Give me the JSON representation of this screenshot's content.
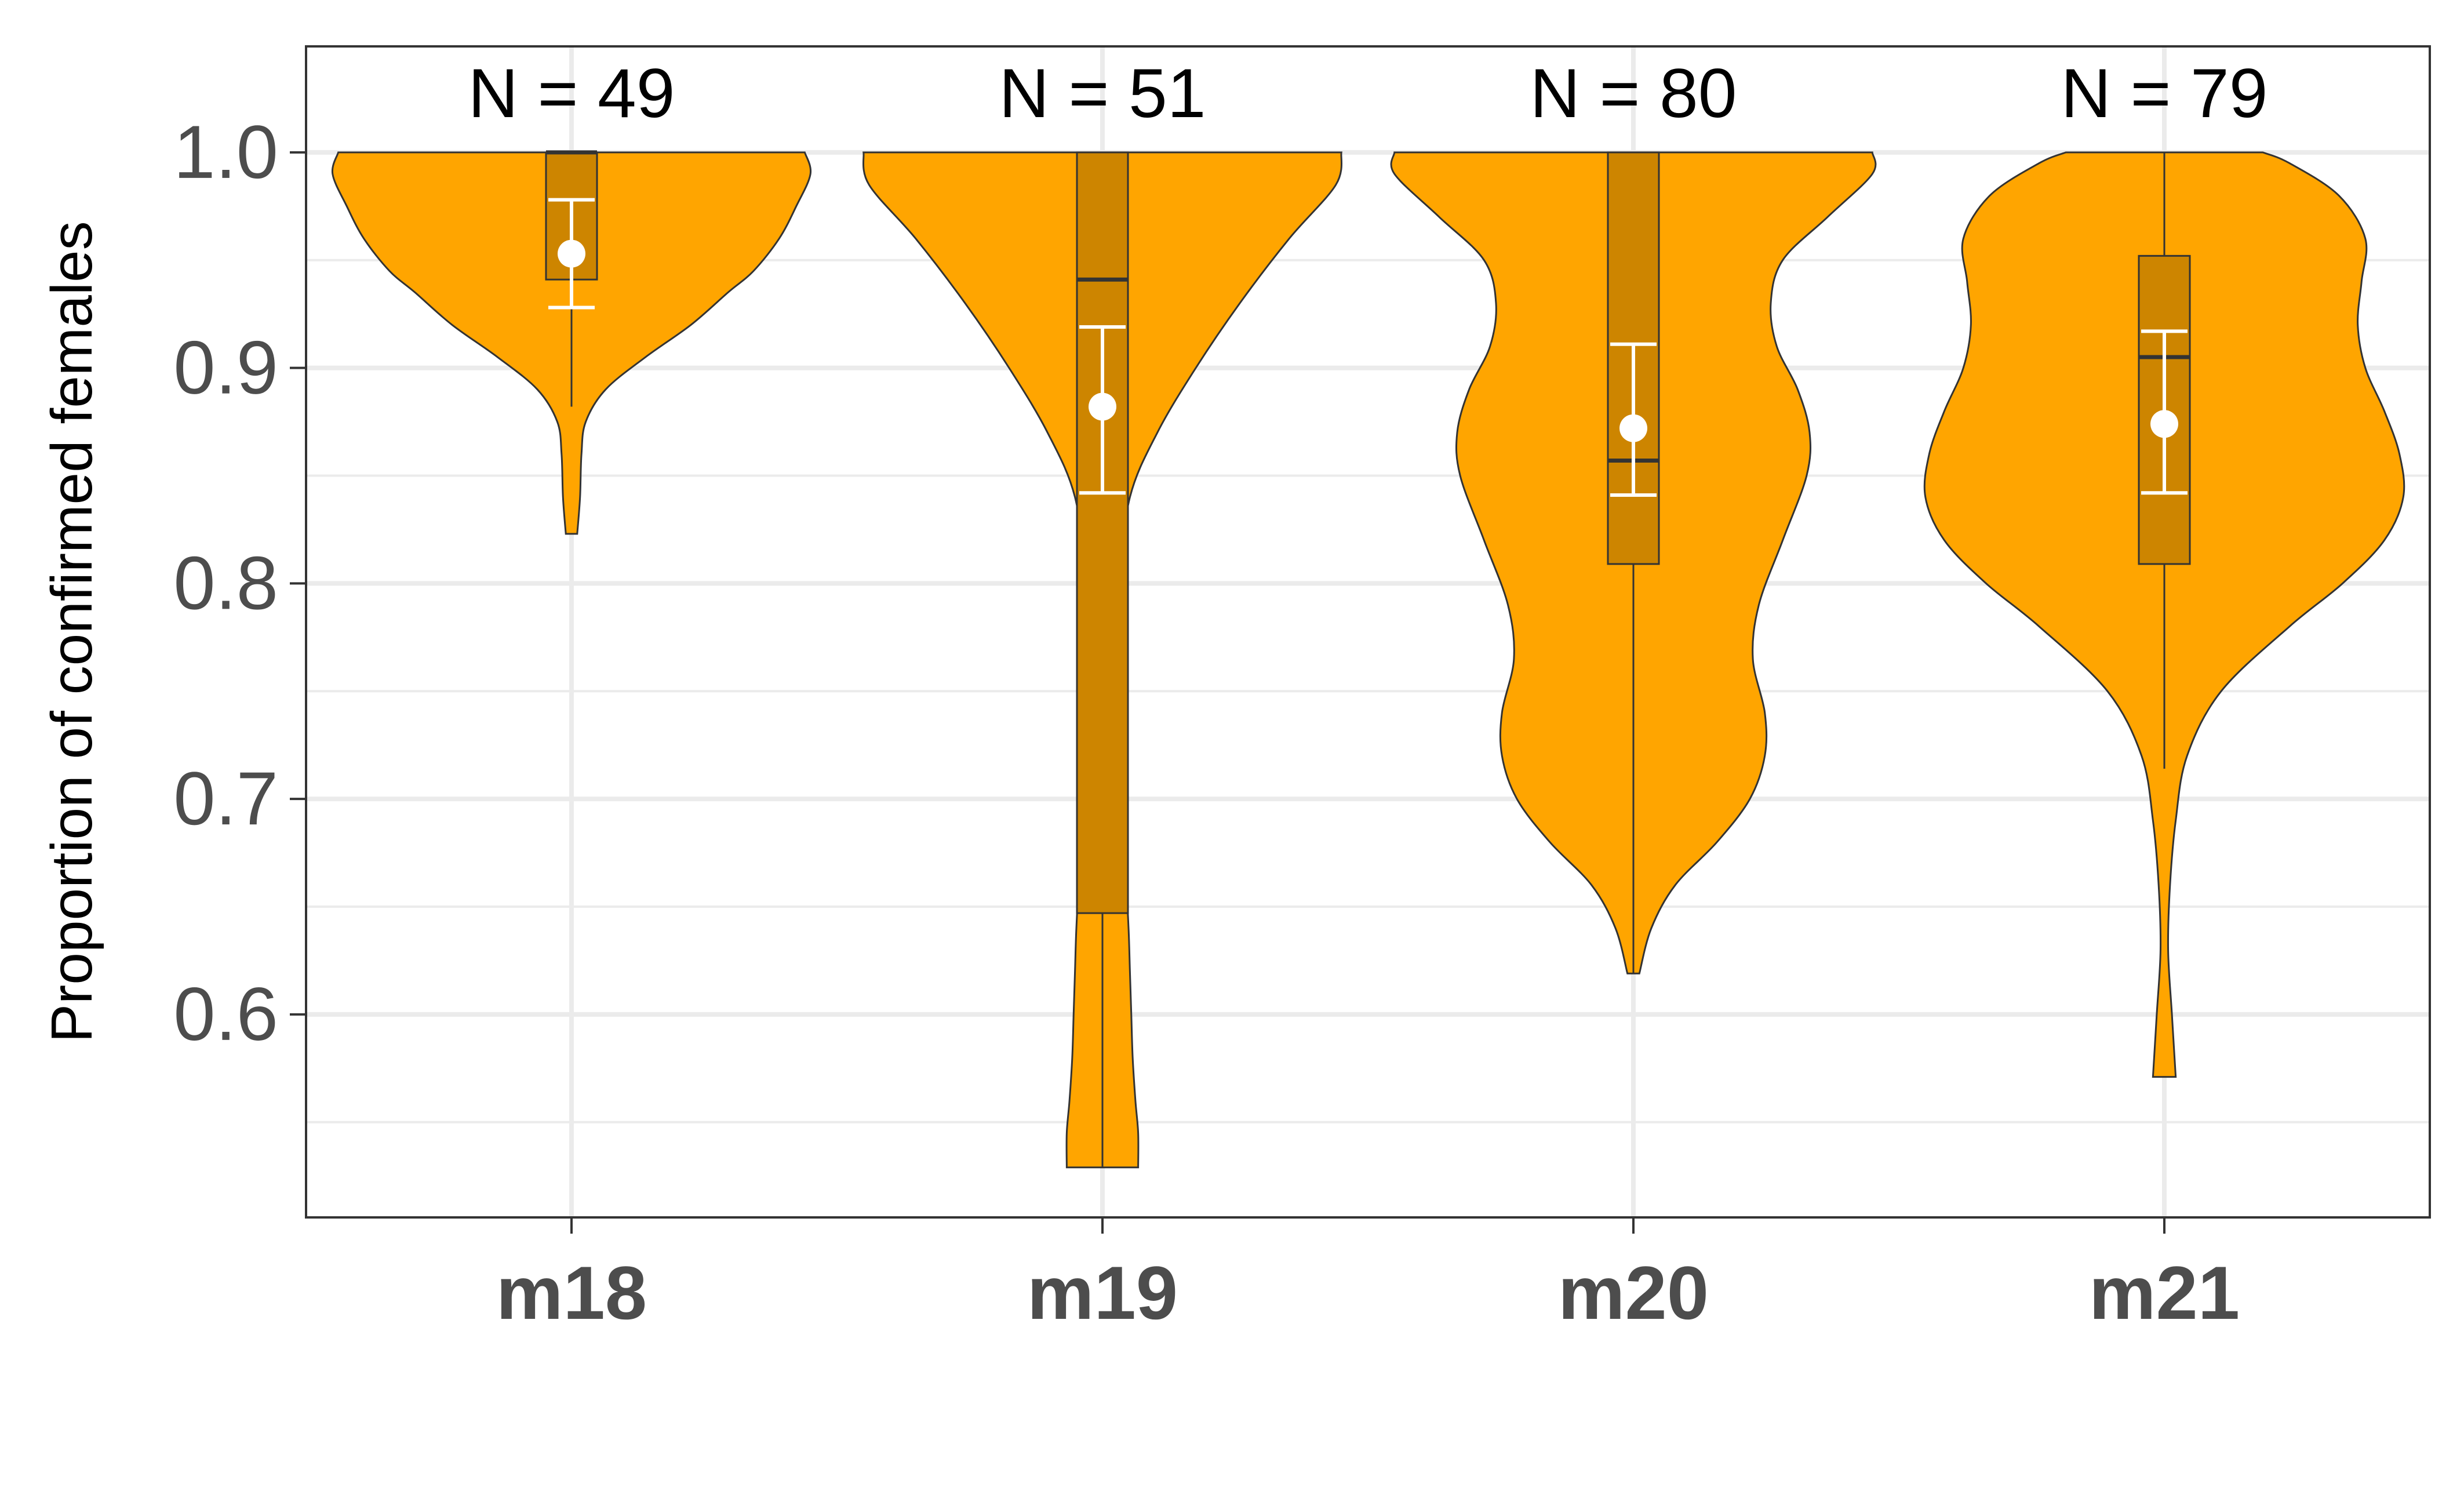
{
  "chart_data": {
    "type": "violin",
    "ylabel": "Proportion of confirmed females",
    "xlabel": "",
    "ylim": [
      0.5,
      1.05
    ],
    "yticks": [
      0.6,
      0.7,
      0.8,
      0.9,
      1.0
    ],
    "ytick_labels": [
      "0.6",
      "0.7",
      "0.8",
      "0.9",
      "1.0"
    ],
    "grid": true,
    "colors": {
      "violin_fill": "#FFA500",
      "box_fill": "#CD8500",
      "outline": "#333333",
      "mean_marker": "#FFFFFF",
      "grid": "#EBEBEB"
    },
    "categories": [
      "m18",
      "m19",
      "m20",
      "m21"
    ],
    "groups": [
      {
        "category": "m18",
        "n_label": "N = 49",
        "y_min": 0.823,
        "y_max": 1.0,
        "box": {
          "q1": 0.941,
          "median": 1.0,
          "q3": 1.0,
          "whisker_low": 0.882,
          "whisker_high": 1.0
        },
        "mean": 0.953,
        "ci": [
          0.928,
          0.978
        ],
        "density": [
          [
            0.823,
            0.02
          ],
          [
            0.84,
            0.03
          ],
          [
            0.86,
            0.035
          ],
          [
            0.875,
            0.05
          ],
          [
            0.89,
            0.12
          ],
          [
            0.905,
            0.26
          ],
          [
            0.92,
            0.42
          ],
          [
            0.935,
            0.55
          ],
          [
            0.945,
            0.64
          ],
          [
            0.96,
            0.73
          ],
          [
            0.975,
            0.79
          ],
          [
            0.99,
            0.84
          ],
          [
            1.0,
            0.82
          ]
        ]
      },
      {
        "category": "m19",
        "n_label": "N = 51",
        "y_min": 0.529,
        "y_max": 1.0,
        "box": {
          "q1": 0.647,
          "median": 0.941,
          "q3": 1.0,
          "whisker_low": 0.529,
          "whisker_high": 1.0
        },
        "mean": 0.882,
        "ci": [
          0.842,
          0.919
        ],
        "density": [
          [
            0.529,
            0.13
          ],
          [
            0.545,
            0.13
          ],
          [
            0.56,
            0.12
          ],
          [
            0.58,
            0.11
          ],
          [
            0.6,
            0.105
          ],
          [
            0.62,
            0.1
          ],
          [
            0.64,
            0.095
          ],
          [
            0.66,
            0.085
          ],
          [
            0.68,
            0.06
          ],
          [
            0.69,
            0.04
          ],
          [
            0.7,
            0.025
          ],
          [
            0.72,
            0.02
          ],
          [
            0.76,
            0.035
          ],
          [
            0.8,
            0.06
          ],
          [
            0.84,
            0.1
          ],
          [
            0.87,
            0.2
          ],
          [
            0.9,
            0.34
          ],
          [
            0.93,
            0.5
          ],
          [
            0.96,
            0.68
          ],
          [
            0.985,
            0.85
          ],
          [
            1.0,
            0.87
          ]
        ]
      },
      {
        "category": "m20",
        "n_label": "N = 80",
        "y_min": 0.619,
        "y_max": 1.0,
        "box": {
          "q1": 0.809,
          "median": 0.857,
          "q3": 1.0,
          "whisker_low": 0.619,
          "whisker_high": 1.0
        },
        "mean": 0.872,
        "ci": [
          0.841,
          0.911
        ],
        "density": [
          [
            0.619,
            0.02
          ],
          [
            0.64,
            0.06
          ],
          [
            0.66,
            0.14
          ],
          [
            0.68,
            0.28
          ],
          [
            0.7,
            0.39
          ],
          [
            0.72,
            0.44
          ],
          [
            0.74,
            0.44
          ],
          [
            0.765,
            0.4
          ],
          [
            0.79,
            0.42
          ],
          [
            0.82,
            0.5
          ],
          [
            0.85,
            0.58
          ],
          [
            0.87,
            0.59
          ],
          [
            0.89,
            0.55
          ],
          [
            0.91,
            0.48
          ],
          [
            0.93,
            0.46
          ],
          [
            0.95,
            0.5
          ],
          [
            0.97,
            0.65
          ],
          [
            0.99,
            0.8
          ],
          [
            1.0,
            0.8
          ]
        ]
      },
      {
        "category": "m21",
        "n_label": "N = 79",
        "y_min": 0.571,
        "y_max": 1.0,
        "box": {
          "q1": 0.809,
          "median": 0.905,
          "q3": 0.952,
          "whisker_low": 0.714,
          "whisker_high": 1.0
        },
        "mean": 0.874,
        "ci": [
          0.842,
          0.917
        ],
        "density": [
          [
            0.571,
            0.03
          ],
          [
            0.6,
            0.02
          ],
          [
            0.63,
            0.01
          ],
          [
            0.66,
            0.015
          ],
          [
            0.69,
            0.03
          ],
          [
            0.72,
            0.06
          ],
          [
            0.75,
            0.15
          ],
          [
            0.78,
            0.33
          ],
          [
            0.8,
            0.47
          ],
          [
            0.82,
            0.58
          ],
          [
            0.84,
            0.63
          ],
          [
            0.86,
            0.62
          ],
          [
            0.88,
            0.58
          ],
          [
            0.9,
            0.53
          ],
          [
            0.92,
            0.51
          ],
          [
            0.94,
            0.52
          ],
          [
            0.96,
            0.53
          ],
          [
            0.98,
            0.46
          ],
          [
            0.995,
            0.33
          ],
          [
            1.0,
            0.26
          ]
        ]
      }
    ]
  }
}
